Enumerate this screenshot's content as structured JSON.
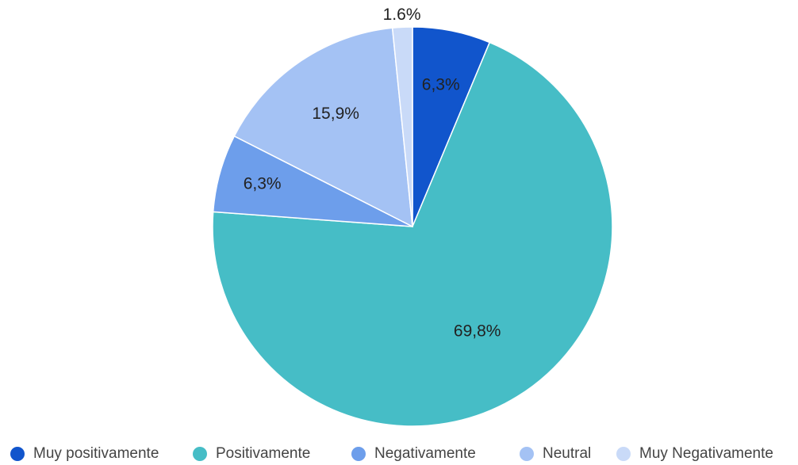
{
  "chart_data": {
    "type": "pie",
    "categories": [
      "Muy positivamente",
      "Positivamente",
      "Negativamente",
      "Neutral",
      "Muy Negativamente"
    ],
    "values": [
      6.3,
      69.8,
      6.3,
      15.9,
      1.6
    ],
    "labels": [
      "6,3%",
      "69,8%",
      "6,3%",
      "15,9%",
      "1.6%"
    ],
    "colors": [
      "#1155cc",
      "#46bdc6",
      "#6d9eeb",
      "#a4c2f4",
      "#c9daf8"
    ],
    "legend_position": "bottom"
  }
}
